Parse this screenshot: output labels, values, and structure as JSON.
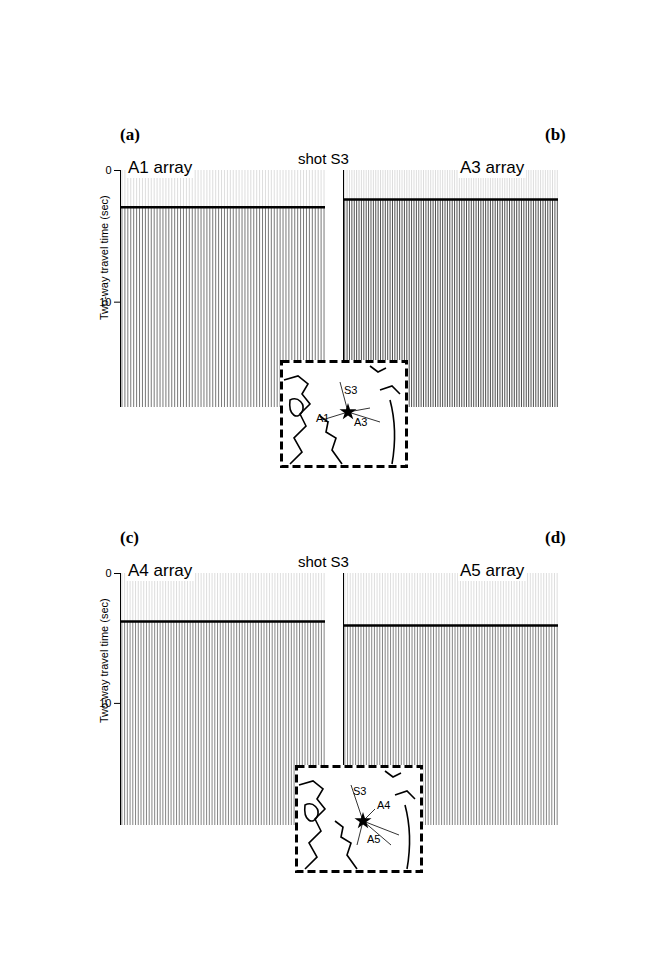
{
  "chart_data": [
    {
      "type": "seismic",
      "panel": "(a)",
      "title": "A1 array",
      "ylabel": "Two-way travel time (sec)",
      "ylim": [
        0,
        18
      ],
      "yticks": [
        0,
        10
      ],
      "first_arrival": 2.8,
      "traces": 70,
      "color": "#555555",
      "tick_labels": "y"
    },
    {
      "type": "seismic",
      "panel": "(b)",
      "title": "A3 array",
      "ylim": [
        0,
        18
      ],
      "first_arrival": 2.2,
      "traces": 90,
      "color": "#222222",
      "tick_labels": false
    },
    {
      "type": "seismic",
      "panel": "(c)",
      "title": "A4 array",
      "ylabel": "Two-way travel time (sec)",
      "ylim": [
        0,
        19.4
      ],
      "yticks": [
        0,
        10
      ],
      "first_arrival": 3.7,
      "traces": 75,
      "color": "#666666",
      "tick_labels": "y"
    },
    {
      "type": "seismic",
      "panel": "(d)",
      "title": "A5 array",
      "ylim": [
        0,
        19.4
      ],
      "first_arrival": 4.0,
      "traces": 80,
      "color": "#666666",
      "tick_labels": false
    }
  ],
  "figure": {
    "groups": [
      {
        "shot": "shot S3",
        "inset_labels": [
          "S3",
          "A1",
          "A3"
        ]
      },
      {
        "shot": "shot S3",
        "inset_labels": [
          "S3",
          "A4",
          "A5"
        ]
      }
    ]
  }
}
